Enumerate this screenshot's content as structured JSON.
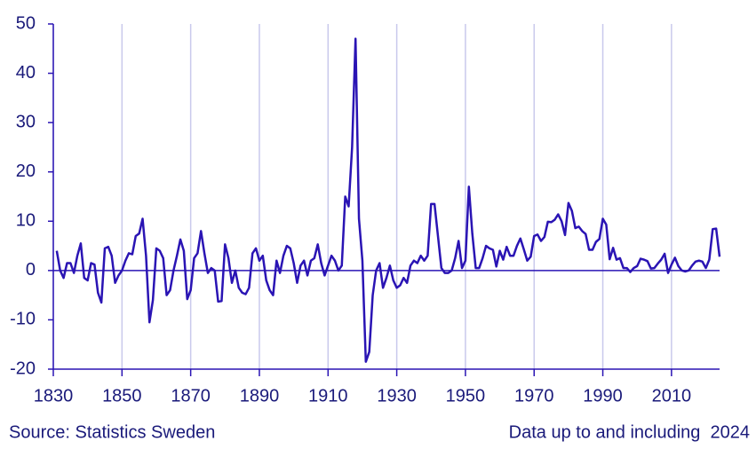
{
  "chart_data": {
    "type": "line",
    "x": [
      1831,
      1832,
      1833,
      1834,
      1835,
      1836,
      1837,
      1838,
      1839,
      1840,
      1841,
      1842,
      1843,
      1844,
      1845,
      1846,
      1847,
      1848,
      1849,
      1850,
      1851,
      1852,
      1853,
      1854,
      1855,
      1856,
      1857,
      1858,
      1859,
      1860,
      1861,
      1862,
      1863,
      1864,
      1865,
      1866,
      1867,
      1868,
      1869,
      1870,
      1871,
      1872,
      1873,
      1874,
      1875,
      1876,
      1877,
      1878,
      1879,
      1880,
      1881,
      1882,
      1883,
      1884,
      1885,
      1886,
      1887,
      1888,
      1889,
      1890,
      1891,
      1892,
      1893,
      1894,
      1895,
      1896,
      1897,
      1898,
      1899,
      1900,
      1901,
      1902,
      1903,
      1904,
      1905,
      1906,
      1907,
      1908,
      1909,
      1910,
      1911,
      1912,
      1913,
      1914,
      1915,
      1916,
      1917,
      1918,
      1919,
      1920,
      1921,
      1922,
      1923,
      1924,
      1925,
      1926,
      1927,
      1928,
      1929,
      1930,
      1931,
      1932,
      1933,
      1934,
      1935,
      1936,
      1937,
      1938,
      1939,
      1940,
      1941,
      1942,
      1943,
      1944,
      1945,
      1946,
      1947,
      1948,
      1949,
      1950,
      1951,
      1952,
      1953,
      1954,
      1955,
      1956,
      1957,
      1958,
      1959,
      1960,
      1961,
      1962,
      1963,
      1964,
      1965,
      1966,
      1967,
      1968,
      1969,
      1970,
      1971,
      1972,
      1973,
      1974,
      1975,
      1976,
      1977,
      1978,
      1979,
      1980,
      1981,
      1982,
      1983,
      1984,
      1985,
      1986,
      1987,
      1988,
      1989,
      1990,
      1991,
      1992,
      1993,
      1994,
      1995,
      1996,
      1997,
      1998,
      1999,
      2000,
      2001,
      2002,
      2003,
      2004,
      2005,
      2006,
      2007,
      2008,
      2009,
      2010,
      2011,
      2012,
      2013,
      2014,
      2015,
      2016,
      2017,
      2018,
      2019,
      2020,
      2021,
      2022,
      2023,
      2024
    ],
    "series": [
      {
        "color": "#2a14b4",
        "values": [
          4,
          0,
          -1.5,
          1.5,
          1.5,
          -0.5,
          3,
          5.5,
          -1.5,
          -2,
          1.5,
          1.2,
          -4.5,
          -6.5,
          4.5,
          4.8,
          3,
          -2.5,
          -1,
          0,
          2,
          3.5,
          3.3,
          7,
          7.5,
          10.5,
          3,
          -10.5,
          -6,
          4.5,
          4,
          2.5,
          -5,
          -4,
          0,
          3,
          6.3,
          4,
          -5.8,
          -4,
          2.5,
          3.5,
          8,
          3.5,
          -0.5,
          0.5,
          0,
          -6.3,
          -6.2,
          5.3,
          2.5,
          -2.5,
          0,
          -3.5,
          -4.5,
          -4.8,
          -3.5,
          3.5,
          4.5,
          2,
          3,
          -2,
          -4,
          -5,
          2,
          -0.5,
          3,
          5,
          4.5,
          1.5,
          -2.5,
          1,
          2,
          -1,
          2,
          2.5,
          5.3,
          1.5,
          -1,
          1,
          3,
          2,
          0,
          1,
          15,
          13,
          25,
          47,
          10.5,
          2,
          -18.5,
          -16.5,
          -5,
          0,
          1.5,
          -3.5,
          -1.5,
          1,
          -2,
          -3.5,
          -3,
          -1.5,
          -2.5,
          1,
          2,
          1.5,
          3,
          2,
          3,
          13.5,
          13.5,
          7,
          0.5,
          -0.5,
          -0.5,
          0,
          2.5,
          6,
          0.5,
          2,
          17,
          7.5,
          0.5,
          0.5,
          2.5,
          5,
          4.5,
          4.2,
          0.8,
          4,
          2.2,
          4.8,
          3,
          3,
          5,
          6.5,
          4.3,
          2,
          2.8,
          7,
          7.3,
          6,
          6.8,
          9.9,
          9.8,
          10.3,
          11.4,
          10,
          7.2,
          13.7,
          12.1,
          8.6,
          8.9,
          8,
          7.4,
          4.2,
          4.2,
          5.8,
          6.4,
          10.5,
          9.3,
          2.3,
          4.6,
          2.2,
          2.5,
          0.5,
          0.5,
          -0.3,
          0.5,
          0.9,
          2.4,
          2.2,
          1.9,
          0.4,
          0.5,
          1.4,
          2.2,
          3.4,
          -0.5,
          1.2,
          2.6,
          0.9,
          0,
          -0.2,
          0,
          1,
          1.8,
          2,
          1.8,
          0.5,
          2.2,
          8.4,
          8.5,
          2.8
        ]
      }
    ],
    "xlim": [
      1830,
      2024
    ],
    "xticks": [
      1830,
      1850,
      1870,
      1890,
      1910,
      1930,
      1950,
      1970,
      1990,
      2010
    ],
    "ylim": [
      -20,
      50
    ],
    "yticks": [
      -20,
      -10,
      0,
      10,
      20,
      30,
      40,
      50
    ],
    "grid": "x",
    "source": "Source: Statistics Sweden",
    "note": "Data up to and including  2024"
  }
}
